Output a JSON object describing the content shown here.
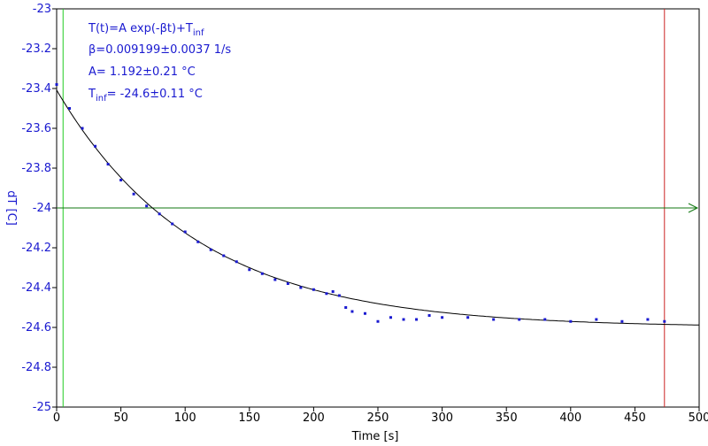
{
  "chart_data": {
    "type": "scatter",
    "xlabel": "Time [s]",
    "ylabel": "dT [C]",
    "xlim": [
      0,
      500
    ],
    "ylim": [
      -25.0,
      -23.0
    ],
    "xticks": [
      0,
      50,
      100,
      150,
      200,
      250,
      300,
      350,
      400,
      450,
      500
    ],
    "yticks": [
      -23,
      -23.2,
      -23.4,
      -23.6,
      -23.8,
      -24,
      -24.2,
      -24.4,
      -24.6,
      -24.8,
      -25
    ],
    "ytick_labels": [
      "-23",
      "-23.2",
      "-23.4",
      "-23.6",
      "-23.8",
      "-24",
      "-24.2",
      "-24.4",
      "-24.6",
      "-24.8",
      "-25"
    ],
    "xtick_labels": [
      "0",
      "50",
      "100",
      "150",
      "200",
      "250",
      "300",
      "350",
      "400",
      "450",
      "500"
    ],
    "annotations": {
      "formula_main": "T(t)=A exp(-βt)+T",
      "formula_sub": "inf",
      "beta": "β=0.009199±0.0037 1/s",
      "amplitude": "A= 1.192±0.21 °C",
      "tinf_prefix": "T",
      "tinf_sub": "inf",
      "tinf_value": "= -24.6±0.11 °C"
    },
    "fit": {
      "A": 1.192,
      "beta": 0.009199,
      "T_inf": -24.6,
      "x_range": [
        0,
        500
      ]
    },
    "reference_lines": {
      "left_vertical_x": 5,
      "right_vertical_x": 473,
      "horizontal_y": -24.0
    },
    "series": [
      {
        "x": [
          0,
          10,
          20,
          30,
          40,
          50,
          60,
          70,
          80,
          90,
          100,
          110,
          120,
          130,
          140,
          150,
          160,
          170,
          180,
          190,
          200,
          210,
          215,
          220,
          225,
          230,
          240,
          250,
          260,
          270,
          280,
          290,
          300,
          320,
          340,
          360,
          380,
          400,
          420,
          440,
          460,
          473
        ],
        "y": [
          -23.38,
          -23.5,
          -23.6,
          -23.69,
          -23.78,
          -23.86,
          -23.93,
          -23.99,
          -24.03,
          -24.08,
          -24.12,
          -24.17,
          -24.21,
          -24.24,
          -24.27,
          -24.31,
          -24.33,
          -24.36,
          -24.38,
          -24.4,
          -24.41,
          -24.43,
          -24.42,
          -24.44,
          -24.5,
          -24.52,
          -24.53,
          -24.57,
          -24.55,
          -24.56,
          -24.56,
          -24.54,
          -24.55,
          -24.55,
          -24.56,
          -24.56,
          -24.56,
          -24.57,
          -24.56,
          -24.57,
          -24.56,
          -24.57
        ]
      }
    ],
    "colors": {
      "points": "#1a1ad0",
      "fit": "#000000",
      "left_line": "#22cc22",
      "right_line": "#cc2222",
      "horizontal_line": "#117711",
      "tick_labels_y": "#1a1ad0",
      "tick_labels_x": "#000000"
    },
    "grid": false,
    "legend": "none"
  }
}
